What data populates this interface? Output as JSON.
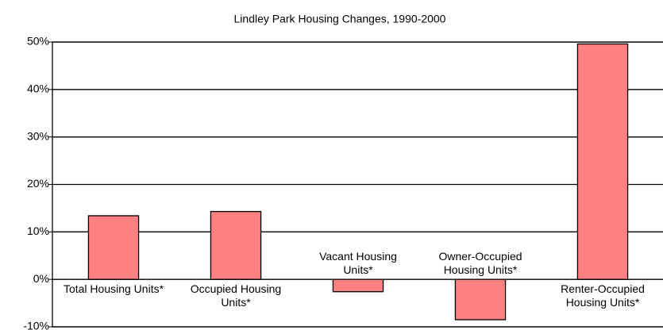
{
  "chart_data": {
    "type": "bar",
    "title": "Lindley Park Housing Changes, 1990-2000",
    "categories": [
      "Total Housing Units*",
      "Occupied Housing Units*",
      "Vacant Housing Units*",
      "Owner-Occupied Housing Units*",
      "Renter-Occupied Housing Units*"
    ],
    "values": [
      13.4,
      14.3,
      -2.6,
      -8.5,
      49.6
    ],
    "color": "#ff8080",
    "ylim": [
      -10,
      50
    ],
    "yticks": [
      {
        "value": -10,
        "label": "-10%"
      },
      {
        "value": 0,
        "label": "0%"
      },
      {
        "value": 10,
        "label": "10%"
      },
      {
        "value": 20,
        "label": "20%"
      },
      {
        "value": 30,
        "label": "30%"
      },
      {
        "value": 40,
        "label": "40%"
      },
      {
        "value": 50,
        "label": "50%"
      }
    ],
    "grid": true
  }
}
